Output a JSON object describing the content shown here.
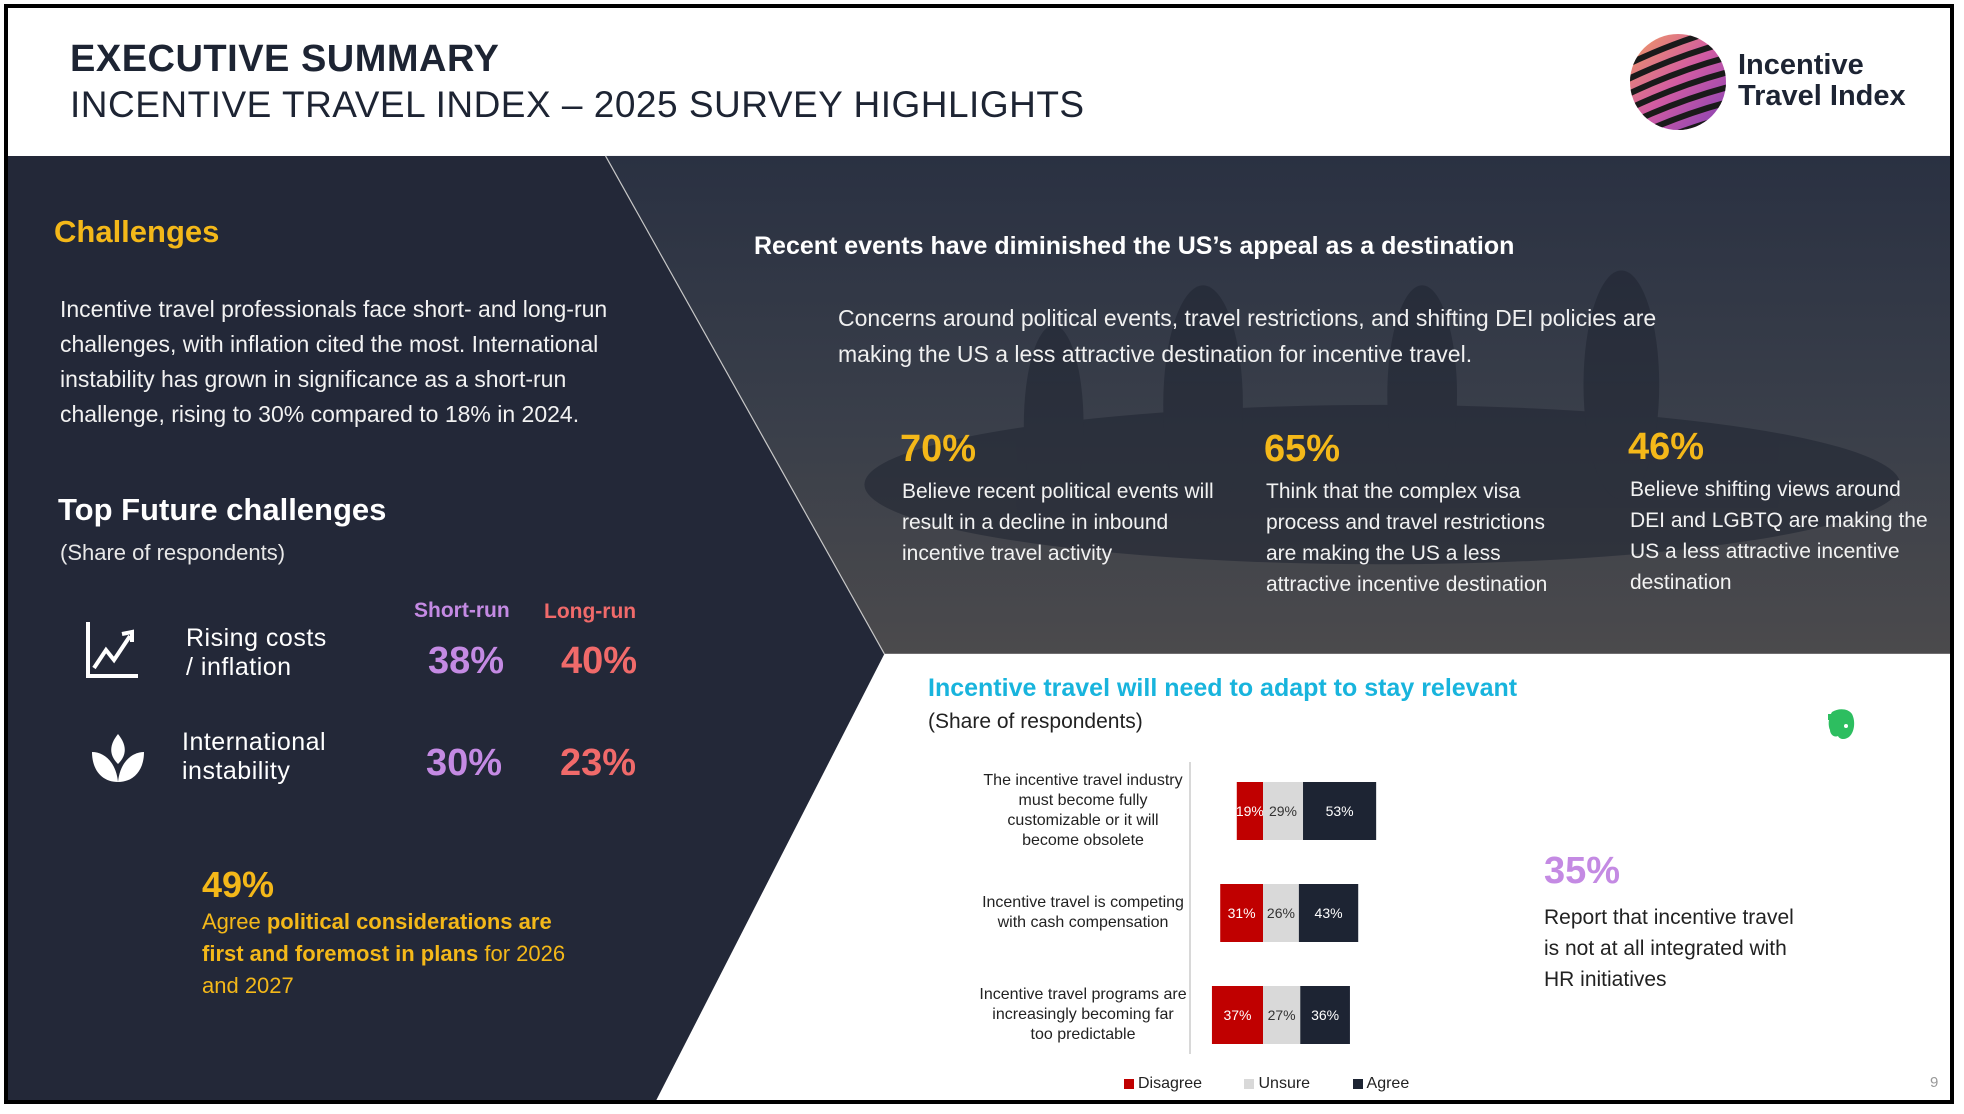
{
  "header": {
    "title": "EXECUTIVE SUMMARY",
    "subtitle": "INCENTIVE TRAVEL INDEX – 2025 SURVEY HIGHLIGHTS",
    "logo_line1": "Incentive",
    "logo_line2": "Travel Index"
  },
  "challenges": {
    "heading": "Challenges",
    "body": "Incentive travel professionals face short- and long-run challenges, with inflation cited the most. International instability has grown in significance as a short-run challenge, rising to 30% compared to 18% in 2024.",
    "top_title": "Top Future challenges",
    "top_sub": "(Share of respondents)",
    "col_short": "Short-run",
    "col_long": "Long-run",
    "rows": [
      {
        "label_1": "Rising costs",
        "label_2": "/ inflation",
        "short": "38%",
        "long": "40%",
        "icon": "rising-chart-icon"
      },
      {
        "label_1": "International",
        "label_2": "instability",
        "short": "30%",
        "long": "23%",
        "icon": "leaf-icon"
      }
    ],
    "political_pct": "49%",
    "political_pre": "Agree ",
    "political_bold": "political considerations are first and foremost in plans",
    "political_post": " for 2026 and 2027"
  },
  "us_appeal": {
    "heading": "Recent events have diminished the US’s appeal as a destination",
    "body": "Concerns around political events, travel restrictions, and shifting DEI policies are making the US a less attractive destination for incentive travel.",
    "stats": [
      {
        "pct": "70%",
        "text": "Believe recent political events will result in a decline in inbound incentive travel activity"
      },
      {
        "pct": "65%",
        "text": "Think that the complex visa process and travel restrictions are making the US a less attractive incentive destination"
      },
      {
        "pct": "46%",
        "text": "Believe shifting views around DEI and LGBTQ are making the US a less attractive incentive destination"
      }
    ]
  },
  "adapt": {
    "heading": "Incentive travel will need to adapt to stay relevant",
    "sub": "(Share of respondents)",
    "hr_pct": "35%",
    "hr_text": "Report that incentive travel is not at all integrated with HR initiatives"
  },
  "chart_data": {
    "type": "bar",
    "orientation": "horizontal-stacked",
    "categories": [
      "The incentive travel industry must become fully customizable or it will become obsolete",
      "Incentive travel is competing with cash compensation",
      "Incentive travel programs are increasingly becoming far too predictable"
    ],
    "category_lines": [
      [
        "The incentive travel industry",
        "must become fully",
        "customizable or it will",
        "become obsolete"
      ],
      [
        "Incentive travel is competing",
        "with cash compensation"
      ],
      [
        "Incentive travel programs are",
        "increasingly becoming far",
        "too predictable"
      ]
    ],
    "series": [
      {
        "name": "Disagree",
        "values": [
          19,
          31,
          37
        ],
        "labels": [
          "19%",
          "31%",
          "37%"
        ],
        "color": "#c00000"
      },
      {
        "name": "Unsure",
        "values": [
          29,
          26,
          27
        ],
        "labels": [
          "29%",
          "26%",
          "27%"
        ],
        "color": "#d9d9d9"
      },
      {
        "name": "Agree",
        "values": [
          53,
          43,
          36
        ],
        "labels": [
          "53%",
          "43%",
          "36%"
        ],
        "color": "#1d2433"
      }
    ],
    "xlim": [
      0,
      110
    ]
  },
  "page_number": "9",
  "colors": {
    "navy": "#232838",
    "yellow": "#f4b819",
    "purple": "#c48ae3",
    "coral": "#f06a6a",
    "cyan": "#18b4dd"
  }
}
